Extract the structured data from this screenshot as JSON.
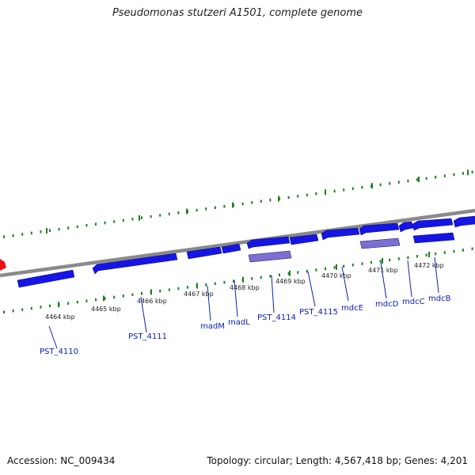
{
  "title": "Pseudomonas stutzeri A1501, complete genome",
  "accession": "Accession: NC_009434",
  "summary": "Topology: circular; Length: 4,567,418 bp; Genes: 4,201",
  "colors": {
    "backbone": "#8a8a8a",
    "gene_forward": "#1515e6",
    "gene_highlight": "#7d6fd0",
    "tick": "#1f7f1f",
    "origin_marker": "#ee1111"
  },
  "kbp_labels": [
    "4464 kbp",
    "4465 kbp",
    "4466 kbp",
    "4467 kbp",
    "4468 kbp",
    "4469 kbp",
    "4470 kbp",
    "4471 kbp",
    "4472 kbp"
  ],
  "gene_labels": [
    "PST_4110",
    "PST_4111",
    "madM",
    "madL",
    "PST_4114",
    "PST_4115",
    "mdcE",
    "mdcD",
    "mdcC",
    "mdcB"
  ]
}
